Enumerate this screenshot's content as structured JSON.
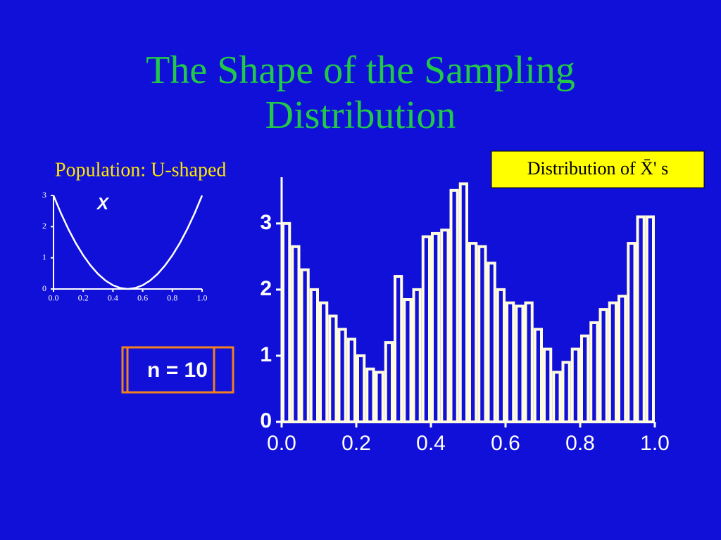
{
  "slide_title": "The Shape of the Sampling Distribution",
  "chart_data": [
    {
      "type": "line",
      "title": "Population: U-shaped",
      "label": "X",
      "color": "#ffffff",
      "x": [
        0,
        0.05,
        0.1,
        0.15,
        0.2,
        0.25,
        0.3,
        0.35,
        0.4,
        0.45,
        0.5,
        0.55,
        0.6,
        0.65,
        0.7,
        0.75,
        0.8,
        0.85,
        0.9,
        0.95,
        1
      ],
      "values": [
        3,
        2.43,
        1.92,
        1.47,
        1.08,
        0.75,
        0.48,
        0.27,
        0.12,
        0.03,
        0,
        0.03,
        0.12,
        0.27,
        0.48,
        0.75,
        1.08,
        1.47,
        1.92,
        2.43,
        3
      ],
      "xlim": [
        0,
        1
      ],
      "ylim": [
        0,
        3
      ],
      "xticks": [
        {
          "value": 0,
          "label": "0.0"
        },
        0.2,
        0.4,
        0.6,
        0.8,
        {
          "value": 1,
          "label": "1.0"
        }
      ],
      "yticks": [
        0,
        1,
        2,
        3
      ]
    },
    {
      "type": "histogram",
      "title": "Distribution of X̄' s",
      "annotation": "n = 10",
      "color": "#fffbe0",
      "bins": [
        0,
        0.025,
        0.05,
        0.075,
        0.1,
        0.125,
        0.15,
        0.175,
        0.2,
        0.225,
        0.25,
        0.275,
        0.3,
        0.325,
        0.35,
        0.375,
        0.4,
        0.425,
        0.45,
        0.475,
        0.5,
        0.525,
        0.55,
        0.575,
        0.6,
        0.625,
        0.65,
        0.675,
        0.7,
        0.725,
        0.75,
        0.775,
        0.8,
        0.825,
        0.85,
        0.875,
        0.9,
        0.925,
        0.95,
        0.975,
        1
      ],
      "values": [
        3,
        2.65,
        2.3,
        2,
        1.8,
        1.6,
        1.4,
        1.25,
        1,
        0.8,
        0.75,
        1.2,
        2.2,
        1.85,
        2,
        2.8,
        2.85,
        2.9,
        3.5,
        3.6,
        2.7,
        2.65,
        2.4,
        2,
        1.8,
        1.75,
        1.8,
        1.4,
        1.1,
        0.75,
        0.9,
        1.1,
        1.3,
        1.5,
        1.7,
        1.8,
        1.9,
        2.7,
        3.1,
        3.1
      ],
      "xlim": [
        0,
        1
      ],
      "ylim": [
        0,
        3.7
      ],
      "xticks": [
        {
          "value": 0,
          "label": "0.0"
        },
        0.2,
        0.4,
        0.6,
        0.8,
        {
          "value": 1,
          "label": "1.0"
        }
      ],
      "yticks": [
        0,
        1,
        2,
        3
      ]
    }
  ]
}
